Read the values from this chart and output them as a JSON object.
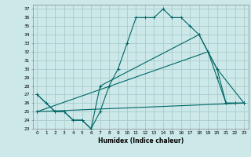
{
  "title": "",
  "xlabel": "Humidex (Indice chaleur)",
  "bg_color": "#cce8e8",
  "grid_color": "#aacccc",
  "line_color": "#006666",
  "xlim": [
    -0.5,
    23.5
  ],
  "ylim": [
    23,
    37.5
  ],
  "xticks": [
    0,
    1,
    2,
    3,
    4,
    5,
    6,
    7,
    8,
    9,
    10,
    11,
    12,
    13,
    14,
    15,
    16,
    17,
    18,
    19,
    20,
    21,
    22,
    23
  ],
  "yticks": [
    23,
    24,
    25,
    26,
    27,
    28,
    29,
    30,
    31,
    32,
    33,
    34,
    35,
    36,
    37
  ],
  "series": [
    {
      "x": [
        0,
        1,
        2,
        3,
        4,
        5,
        6,
        7,
        8,
        9,
        10,
        11,
        12,
        13,
        14,
        15,
        16,
        17,
        18,
        19,
        20,
        21,
        22,
        23
      ],
      "y": [
        27,
        26,
        25,
        25,
        24,
        24,
        23,
        25,
        28,
        30,
        33,
        36,
        36,
        36,
        37,
        36,
        36,
        35,
        34,
        32,
        29,
        26,
        26,
        26
      ]
    },
    {
      "x": [
        0,
        2,
        3,
        4,
        5,
        6,
        7,
        18,
        19,
        20,
        21,
        22,
        23
      ],
      "y": [
        27,
        25,
        25,
        24,
        24,
        23,
        28,
        34,
        32,
        30,
        26,
        26,
        26
      ]
    },
    {
      "x": [
        0,
        23
      ],
      "y": [
        25,
        26
      ]
    },
    {
      "x": [
        0,
        19,
        20,
        23
      ],
      "y": [
        25,
        32,
        30,
        26
      ]
    }
  ],
  "xlabel_fontsize": 5.5,
  "tick_fontsize": 4.2
}
